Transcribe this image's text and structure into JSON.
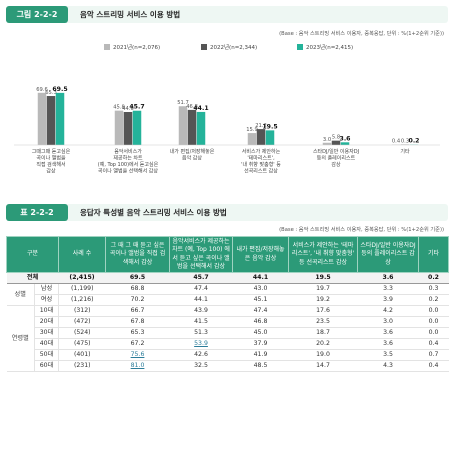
{
  "figure": {
    "label": "그림 2-2-2",
    "title": "음악 스트리밍 서비스 이용 방법",
    "base_note": "(Base : 음악 스트리밍 서비스 이용자, 중복응답, 단위 : %(1+2순위 기준))"
  },
  "chart_data": {
    "type": "bar",
    "title": "음악 스트리밍 서비스 이용 방법",
    "categories": [
      [
        "그때그때 듣고싶은",
        "곡이나 앨범을",
        "직접 검색해서",
        "감상"
      ],
      [
        "음악서비스가",
        "제공하는 차트",
        "(예, Top 100)에서 듣고싶은",
        "곡이나 앨범을 선택해서 감상"
      ],
      [
        "내가 편집/저장해놓은",
        "음악 감상"
      ],
      [
        "서비스가 제안하는",
        "'테마리스트',",
        "'내 취향 맞춤형' 등",
        "선곡리스트 감상"
      ],
      [
        "스타DJ/일반 이용자DJ",
        "등의 플레이리스트",
        "감상"
      ],
      [
        "기타"
      ]
    ],
    "series": [
      {
        "name": "2021년(n=2,076)",
        "color": "#b9b9b9",
        "values": [
          69.6,
          45.8,
          51.7,
          15.9,
          3.0,
          0.4
        ]
      },
      {
        "name": "2022년(n=2,344)",
        "color": "#555555",
        "values": [
          65.3,
          44.0,
          46.8,
          21.2,
          5.8,
          0.3
        ]
      },
      {
        "name": "2023년(n=2,415)",
        "color": "#24b39a",
        "values": [
          69.5,
          45.7,
          44.1,
          19.5,
          3.6,
          0.2
        ]
      }
    ],
    "value_labels": [
      [
        "69.6",
        "65.3",
        "69.5"
      ],
      [
        "45.8",
        "44.0",
        "45.7"
      ],
      [
        "51.7",
        "46.8",
        "44.1"
      ],
      [
        "15.9",
        "21.2",
        "19.5"
      ],
      [
        "3.0",
        "5.8",
        "3.6"
      ],
      [
        "0.4",
        "0.3",
        "0.2"
      ]
    ],
    "ylim": [
      0,
      80
    ],
    "grid": false,
    "legend": "top-center"
  },
  "table": {
    "label": "표 2-2-2",
    "title": "응답자 특성별 음악 스트리밍 서비스 이용 방법",
    "base_note": "(Base : 음악 스트리밍 서비스 이용자, 중복응답, 단위 : %(1+2순위 기준))",
    "headers": {
      "group": "구분",
      "count": "사례 수",
      "c1": "그 때 그 때 듣고 싶은 곡이나 앨범을 직접 검색해서 감상",
      "c2": "음악서비스가 제공하는 차트 (예, Top 100) 에서 듣고 싶은 곡이나 앨범을 선택해서 감상",
      "c3": "내가 편집/저장해놓은 음악 감상",
      "c4": "서비스가 제안하는 '테마리스트', '내 취향 맞춤형' 등 선곡리스트 감상",
      "c5": "스타DJ/일반 이용자DJ 등의 플레이리스트 감상",
      "c6": "기타"
    },
    "total": {
      "label": "전체",
      "n": "(2,415)",
      "v": [
        "69.5",
        "45.7",
        "44.1",
        "19.5",
        "3.6",
        "0.2"
      ]
    },
    "gender": {
      "label": "성별",
      "rows": [
        {
          "label": "남성",
          "n": "(1,199)",
          "v": [
            "68.8",
            "47.4",
            "43.0",
            "19.7",
            "3.3",
            "0.3"
          ]
        },
        {
          "label": "여성",
          "n": "(1,216)",
          "v": [
            "70.2",
            "44.1",
            "45.1",
            "19.2",
            "3.9",
            "0.2"
          ]
        }
      ]
    },
    "age": {
      "label": "연령별",
      "rows": [
        {
          "label": "10대",
          "n": "(312)",
          "v": [
            "66.7",
            "43.9",
            "47.4",
            "17.6",
            "4.2",
            "0.0"
          ]
        },
        {
          "label": "20대",
          "n": "(472)",
          "v": [
            "67.8",
            "41.5",
            "46.8",
            "23.5",
            "3.0",
            "0.0"
          ]
        },
        {
          "label": "30대",
          "n": "(524)",
          "v": [
            "65.3",
            "51.3",
            "45.0",
            "18.7",
            "3.6",
            "0.0"
          ]
        },
        {
          "label": "40대",
          "n": "(475)",
          "v": [
            "67.2",
            "53.9",
            "37.9",
            "20.2",
            "3.6",
            "0.4"
          ]
        },
        {
          "label": "50대",
          "n": "(401)",
          "v": [
            "75.6",
            "42.6",
            "41.9",
            "19.0",
            "3.5",
            "0.7"
          ]
        },
        {
          "label": "60대",
          "n": "(231)",
          "v": [
            "81.0",
            "32.5",
            "48.5",
            "14.7",
            "4.3",
            "0.4"
          ]
        }
      ]
    }
  }
}
